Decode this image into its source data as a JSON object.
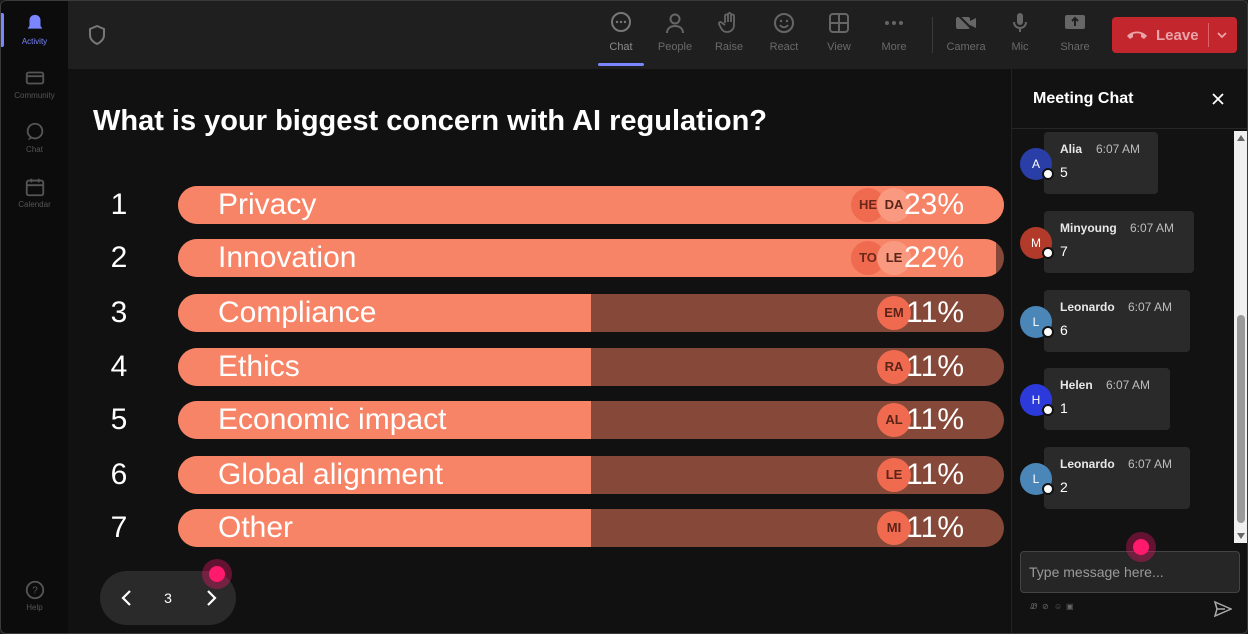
{
  "rail": {
    "items": [
      {
        "label": "Activity",
        "icon": "bell-icon"
      },
      {
        "label": "Community",
        "icon": "community-icon"
      },
      {
        "label": "Chat",
        "icon": "chat-icon"
      },
      {
        "label": "Calendar",
        "icon": "calendar-icon"
      }
    ],
    "help": "Help"
  },
  "toolbar": {
    "chat": "Chat",
    "people": "People",
    "raise": "Raise",
    "react": "React",
    "view": "View",
    "more": "More",
    "camera": "Camera",
    "mic": "Mic",
    "share": "Share",
    "leave": "Leave"
  },
  "poll": {
    "question": "What is your biggest concern with AI regulation?",
    "options": [
      {
        "num": "1",
        "label": "Privacy",
        "percent": "23%",
        "fraction": 1.0,
        "avatars": [
          "HE",
          "DA"
        ]
      },
      {
        "num": "2",
        "label": "Innovation",
        "percent": "22%",
        "fraction": 0.99,
        "avatars": [
          "TO",
          "LE"
        ]
      },
      {
        "num": "3",
        "label": "Compliance",
        "percent": "11%",
        "fraction": 0.5,
        "avatars": [
          "EM"
        ]
      },
      {
        "num": "4",
        "label": "Ethics",
        "percent": "11%",
        "fraction": 0.5,
        "avatars": [
          "RA"
        ]
      },
      {
        "num": "5",
        "label": "Economic impact",
        "percent": "11%",
        "fraction": 0.5,
        "avatars": [
          "AL"
        ]
      },
      {
        "num": "6",
        "label": "Global alignment",
        "percent": "11%",
        "fraction": 0.5,
        "avatars": [
          "LE"
        ]
      },
      {
        "num": "7",
        "label": "Other",
        "percent": "11%",
        "fraction": 0.5,
        "avatars": [
          "MI"
        ]
      }
    ]
  },
  "pager": {
    "page": "3"
  },
  "chat": {
    "title": "Meeting Chat",
    "messages": [
      {
        "initial": "A",
        "name": "Alia",
        "time": "6:07 AM",
        "text": "5",
        "color": "#2a3ea8"
      },
      {
        "initial": "M",
        "name": "Minyoung",
        "time": "6:07 AM",
        "text": "7",
        "color": "#b23a2a"
      },
      {
        "initial": "L",
        "name": "Leonardo",
        "time": "6:07 AM",
        "text": "6",
        "color": "#4a86b8"
      },
      {
        "initial": "H",
        "name": "Helen",
        "time": "6:07 AM",
        "text": "1",
        "color": "#2c3adc"
      },
      {
        "initial": "L",
        "name": "Leonardo",
        "time": "6:07 AM",
        "text": "2",
        "color": "#4a86b8"
      }
    ],
    "placeholder": "Type message here..."
  },
  "colors": {
    "bar_fill": "#f78466",
    "bar_track": "#864838",
    "leave": "#c4262e",
    "accent": "#7a86ff"
  }
}
